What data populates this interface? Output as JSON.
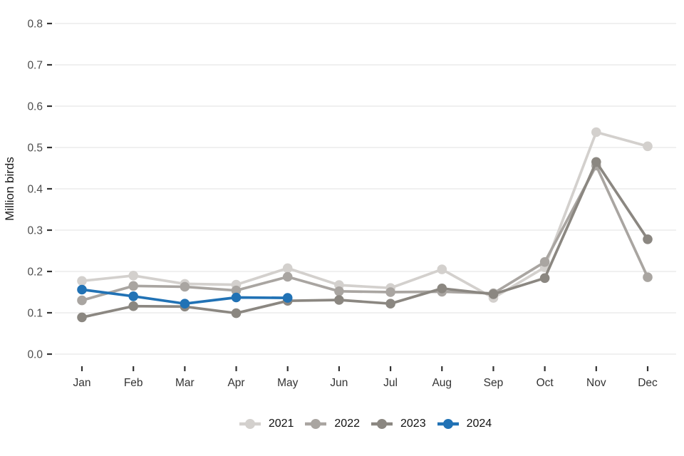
{
  "chart_data": {
    "type": "line",
    "title": "",
    "xlabel": "",
    "ylabel": "Million birds",
    "categories": [
      "Jan",
      "Feb",
      "Mar",
      "Apr",
      "May",
      "Jun",
      "Jul",
      "Aug",
      "Sep",
      "Oct",
      "Nov",
      "Dec"
    ],
    "series": [
      {
        "name": "2021",
        "color": "#d3d0cd",
        "values": [
          0.177,
          0.19,
          0.17,
          0.168,
          0.208,
          0.167,
          0.16,
          0.205,
          0.136,
          0.21,
          0.537,
          0.503
        ]
      },
      {
        "name": "2022",
        "color": "#a9a5a1",
        "values": [
          0.13,
          0.165,
          0.163,
          0.154,
          0.187,
          0.152,
          0.15,
          0.151,
          0.147,
          0.223,
          0.456,
          0.186
        ]
      },
      {
        "name": "2023",
        "color": "#8b8781",
        "values": [
          0.089,
          0.116,
          0.115,
          0.099,
          0.129,
          0.131,
          0.122,
          0.159,
          0.145,
          0.184,
          0.465,
          0.278
        ]
      },
      {
        "name": "2024",
        "color": "#2172b5",
        "values": [
          0.156,
          0.14,
          0.122,
          0.137,
          0.136,
          null,
          null,
          null,
          null,
          null,
          null,
          null
        ]
      }
    ],
    "ylim": [
      0,
      0.8
    ],
    "ytick_labels": [
      "0.0",
      "0.1",
      "0.2",
      "0.3",
      "0.4",
      "0.5",
      "0.6",
      "0.7",
      "0.8"
    ],
    "grid": "horizontal-major-only",
    "legend_position": "bottom"
  },
  "colors": {
    "background": "#ffffff",
    "gridline": "#e7e7e7",
    "tick_mark": "#333333",
    "ytick_label": "#4d4d4d",
    "xtick_label": "#333333",
    "axis_title": "#1a1a1a",
    "legend_text": "#111111"
  }
}
